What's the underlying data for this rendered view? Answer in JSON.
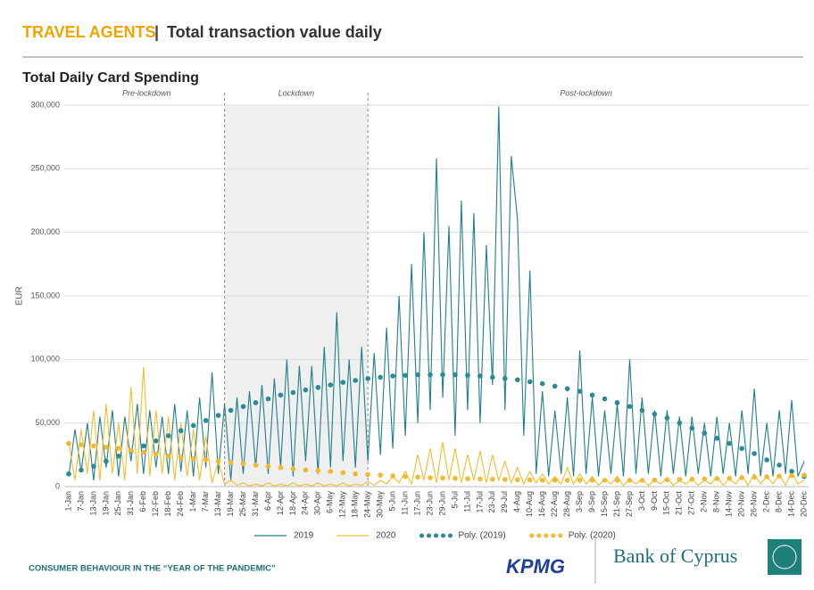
{
  "header": {
    "category": "TRAVEL AGENTS",
    "separator": "|",
    "title": "Total transaction value daily"
  },
  "footer": {
    "note": "CONSUMER BEHAVIOUR IN THE “YEAR OF THE PANDEMIC”",
    "logo1": "KPMG",
    "logo2": "Bank of Cyprus"
  },
  "chart_data": {
    "type": "line",
    "title": "Total Daily Card Spending",
    "y_label": "EUR",
    "categories": [
      "1-Jan",
      null,
      "7-Jan",
      null,
      "13-Jan",
      null,
      "19-Jan",
      null,
      "25-Jan",
      null,
      "31-Jan",
      null,
      "6-Feb",
      null,
      "12-Feb",
      null,
      "18-Feb",
      null,
      "24-Feb",
      null,
      "1-Mar",
      null,
      "7-Mar",
      null,
      "13-Mar",
      null,
      "19-Mar",
      null,
      "25-Mar",
      null,
      "31-Mar",
      null,
      "6-Apr",
      null,
      "12-Apr",
      null,
      "18-Apr",
      null,
      "24-Apr",
      null,
      "30-Apr",
      null,
      "6-May",
      null,
      "12-May",
      null,
      "18-May",
      null,
      "24-May",
      null,
      "30-May",
      null,
      "5-Jun",
      null,
      "11-Jun",
      null,
      "17-Jun",
      null,
      "23-Jun",
      null,
      "29-Jun",
      null,
      "5-Jul",
      null,
      "11-Jul",
      null,
      "17-Jul",
      null,
      "23-Jul",
      null,
      "29-Jul",
      null,
      "4-Aug",
      null,
      "10-Aug",
      null,
      "16-Aug",
      null,
      "22-Aug",
      null,
      "28-Aug",
      null,
      "3-Sep",
      null,
      "9-Sep",
      null,
      "15-Sep",
      null,
      "21-Sep",
      null,
      "27-Sep",
      null,
      "3-Oct",
      null,
      "9-Oct",
      null,
      "15-Oct",
      null,
      "21-Oct",
      null,
      "27-Oct",
      null,
      "2-Nov",
      null,
      "8-Nov",
      null,
      "14-Nov",
      null,
      "20-Nov",
      null,
      "26-Nov",
      null,
      "2-Dec",
      null,
      "8-Dec",
      null,
      "14-Dec",
      null,
      "20-Dec"
    ],
    "series": [
      {
        "name": "2019",
        "style": "line",
        "color": "#1f7f8c",
        "values": [
          8000,
          45000,
          12000,
          50000,
          5000,
          55000,
          15000,
          60000,
          8000,
          55000,
          20000,
          65000,
          10000,
          60000,
          15000,
          55000,
          10000,
          65000,
          12000,
          60000,
          8000,
          70000,
          15000,
          90000,
          10000,
          65000,
          5000,
          70000,
          10000,
          75000,
          15000,
          80000,
          10000,
          85000,
          15000,
          100000,
          8000,
          95000,
          20000,
          95000,
          10000,
          110000,
          15000,
          137000,
          20000,
          100000,
          15000,
          110000,
          20000,
          105000,
          25000,
          125000,
          30000,
          150000,
          40000,
          175000,
          50000,
          200000,
          60000,
          258000,
          70000,
          205000,
          40000,
          225000,
          60000,
          215000,
          50000,
          190000,
          80000,
          299000,
          60000,
          260000,
          210000,
          40000,
          170000,
          10000,
          75000,
          8000,
          60000,
          10000,
          70000,
          8000,
          107000,
          10000,
          70000,
          8000,
          60000,
          10000,
          65000,
          8000,
          100000,
          10000,
          70000,
          10000,
          60000,
          8000,
          60000,
          10000,
          55000,
          8000,
          55000,
          10000,
          50000,
          8000,
          55000,
          10000,
          50000,
          8000,
          60000,
          10000,
          77000,
          8000,
          50000,
          8000,
          60000,
          10000,
          68000,
          8000,
          20000
        ]
      },
      {
        "name": "2020",
        "style": "line",
        "color": "#f2bf2a",
        "values": [
          35000,
          5000,
          45000,
          10000,
          60000,
          5000,
          65000,
          10000,
          50000,
          5000,
          78000,
          10000,
          94000,
          8000,
          60000,
          10000,
          55000,
          5000,
          50000,
          8000,
          45000,
          5000,
          40000,
          3000,
          20000,
          2000,
          5000,
          1000,
          3000,
          500,
          2000,
          500,
          3000,
          500,
          2000,
          500,
          3000,
          500,
          2000,
          500,
          3000,
          500,
          2000,
          500,
          3000,
          500,
          2000,
          1000,
          4000,
          1000,
          5000,
          2000,
          8000,
          3000,
          12000,
          2000,
          25000,
          5000,
          30000,
          3000,
          35000,
          5000,
          30000,
          3000,
          25000,
          5000,
          28000,
          3000,
          25000,
          5000,
          20000,
          3000,
          15000,
          2000,
          12000,
          3000,
          10000,
          2000,
          8000,
          2000,
          15000,
          2000,
          10000,
          2000,
          8000,
          1000,
          6000,
          2000,
          8000,
          1000,
          6000,
          2000,
          6000,
          1000,
          5000,
          2000,
          7000,
          1000,
          5000,
          2000,
          6000,
          1000,
          5000,
          2000,
          8000,
          1000,
          6000,
          2000,
          9000,
          1000,
          10000,
          2000,
          8000,
          2000,
          10000,
          1000,
          12000,
          2000,
          5000
        ]
      },
      {
        "name": "Poly. (2019)",
        "style": "dots",
        "color": "#2a8a96",
        "values": [
          10000,
          null,
          13000,
          null,
          16000,
          null,
          20000,
          null,
          24000,
          null,
          28000,
          null,
          32000,
          null,
          36000,
          null,
          40000,
          null,
          44000,
          null,
          48000,
          null,
          52000,
          null,
          56000,
          null,
          60000,
          null,
          63000,
          null,
          66000,
          null,
          69000,
          null,
          72000,
          null,
          74000,
          null,
          76000,
          null,
          78000,
          null,
          80000,
          null,
          82000,
          null,
          83500,
          null,
          85000,
          null,
          86000,
          null,
          87000,
          null,
          87500,
          null,
          88000,
          null,
          88000,
          null,
          88000,
          null,
          88000,
          null,
          87500,
          null,
          87000,
          null,
          86000,
          null,
          85000,
          null,
          84000,
          null,
          82500,
          null,
          81000,
          null,
          79000,
          null,
          77000,
          null,
          75000,
          null,
          72000,
          null,
          69000,
          null,
          66000,
          null,
          63000,
          null,
          60000,
          null,
          57000,
          null,
          54000,
          null,
          50000,
          null,
          46000,
          null,
          42000,
          null,
          38000,
          null,
          34000,
          null,
          30000,
          null,
          26000,
          null,
          21000,
          null,
          17000,
          null,
          12000,
          null,
          8000
        ]
      },
      {
        "name": "Poly. (2020)",
        "style": "dots",
        "color": "#f2b830",
        "values": [
          34000,
          null,
          33000,
          null,
          32000,
          null,
          31000,
          null,
          30000,
          null,
          28500,
          null,
          27000,
          null,
          25500,
          null,
          24000,
          null,
          23000,
          null,
          22000,
          null,
          21000,
          null,
          20000,
          null,
          19000,
          null,
          18000,
          null,
          17000,
          null,
          16000,
          null,
          15000,
          null,
          14000,
          null,
          13000,
          null,
          12500,
          null,
          12000,
          null,
          11000,
          null,
          10000,
          null,
          9500,
          null,
          9000,
          null,
          8500,
          null,
          8000,
          null,
          7500,
          null,
          7000,
          null,
          6800,
          null,
          6500,
          null,
          6200,
          null,
          6000,
          null,
          5800,
          null,
          5600,
          null,
          5400,
          null,
          5200,
          null,
          5000,
          null,
          5000,
          null,
          5000,
          null,
          5000,
          null,
          5000,
          null,
          5000,
          null,
          5000,
          null,
          5000,
          null,
          5000,
          null,
          5200,
          null,
          5400,
          null,
          5600,
          null,
          5800,
          null,
          6000,
          null,
          6300,
          null,
          6600,
          null,
          7000,
          null,
          7400,
          null,
          7800,
          null,
          8200,
          null,
          8600,
          null,
          9000
        ]
      }
    ],
    "periods": [
      {
        "label": "Pre-lockdown",
        "range": [
          0,
          25
        ]
      },
      {
        "label": "Lockdown",
        "range": [
          25,
          48
        ],
        "shaded": true
      },
      {
        "label": "Post-lockdown",
        "range": [
          48,
          118
        ]
      }
    ],
    "ylim": [
      0,
      300000
    ],
    "yticks": [
      0,
      {
        "value": 50000,
        "label": "50,000"
      },
      {
        "value": 100000,
        "label": "100,000"
      },
      {
        "value": 150000,
        "label": "150,000"
      },
      {
        "value": 200000,
        "label": "200,000"
      },
      {
        "value": 250000,
        "label": "250,000"
      },
      {
        "value": 300000,
        "label": "300,000"
      }
    ],
    "grid": true,
    "legend": "bottom"
  }
}
